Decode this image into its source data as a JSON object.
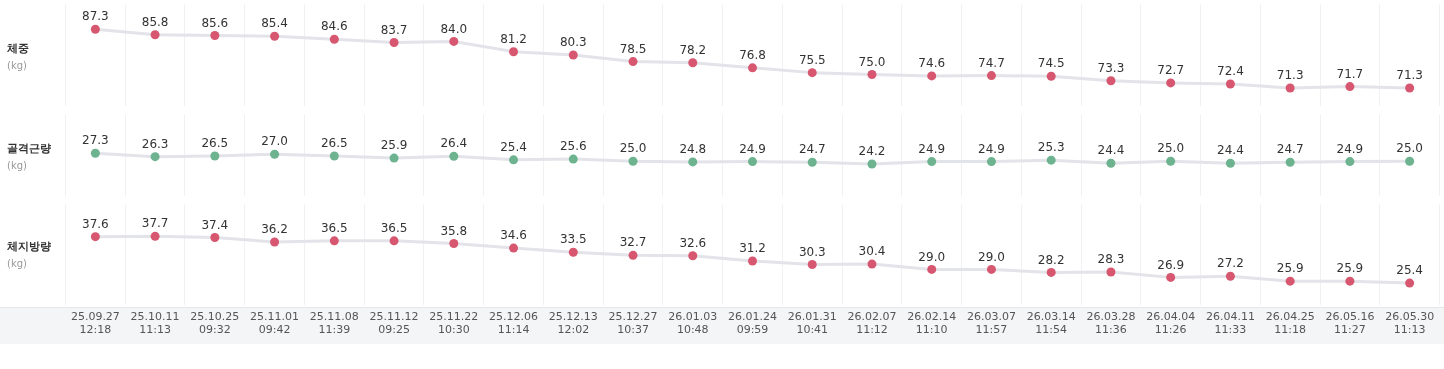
{
  "chart_data": [
    {
      "type": "line",
      "ylabel": "체중\n(kg)",
      "categories": [
        null,
        null,
        null,
        null,
        null,
        null,
        null,
        null,
        null,
        null,
        null,
        null,
        null,
        null,
        null,
        null,
        null,
        null,
        null,
        null,
        null,
        null,
        null
      ],
      "tick_labels": false,
      "grid": "x",
      "legend": false,
      "marker": "circle",
      "line_style": "solid",
      "series": [
        {
          "color": "#e3e3ea",
          "colors": [
            "#d6576f",
            "#d6576f",
            "#d6576f",
            "#d6576f",
            "#d6576f",
            "#d6576f",
            "#d6576f",
            "#d6576f",
            "#d6576f",
            "#d6576f",
            "#d6576f",
            "#d6576f",
            "#d6576f",
            "#d6576f",
            "#d6576f",
            "#d6576f",
            "#d6576f",
            "#d6576f",
            "#d6576f",
            "#d6576f",
            "#d6576f",
            "#d6576f",
            "#d6576f"
          ],
          "values": [
            87.3,
            85.8,
            85.6,
            85.4,
            84.6,
            83.7,
            84.0,
            81.2,
            80.3,
            78.5,
            78.2,
            76.8,
            75.5,
            75.0,
            74.6,
            74.7,
            74.5,
            73.3,
            72.7,
            72.4,
            71.3,
            71.7,
            71.3
          ],
          "value_labels": [
            "87.3",
            "85.8",
            "85.6",
            "85.4",
            "84.6",
            "83.7",
            "84.0",
            "81.2",
            "80.3",
            "78.5",
            "78.2",
            "76.8",
            "75.5",
            "75.0",
            "74.6",
            "74.7",
            "74.5",
            "73.3",
            "72.7",
            "72.4",
            "71.3",
            "71.7",
            "71.3"
          ]
        }
      ]
    },
    {
      "type": "line",
      "ylabel": "골격근량\n(kg)",
      "categories": [
        null,
        null,
        null,
        null,
        null,
        null,
        null,
        null,
        null,
        null,
        null,
        null,
        null,
        null,
        null,
        null,
        null,
        null,
        null,
        null,
        null,
        null,
        null
      ],
      "tick_labels": false,
      "grid": "x",
      "legend": false,
      "marker": "circle",
      "line_style": "solid",
      "series": [
        {
          "color": "#e3e3ea",
          "colors": [
            "#6db38f",
            "#6db38f",
            "#6db38f",
            "#6db38f",
            "#6db38f",
            "#6db38f",
            "#6db38f",
            "#6db38f",
            "#6db38f",
            "#6db38f",
            "#6db38f",
            "#6db38f",
            "#6db38f",
            "#6db38f",
            "#6db38f",
            "#6db38f",
            "#6db38f",
            "#6db38f",
            "#6db38f",
            "#6db38f",
            "#6db38f",
            "#6db38f",
            "#6db38f"
          ],
          "values": [
            27.3,
            26.3,
            26.5,
            27.0,
            26.5,
            25.9,
            26.4,
            25.4,
            25.6,
            25.0,
            24.8,
            24.9,
            24.7,
            24.2,
            24.9,
            24.9,
            25.3,
            24.4,
            25.0,
            24.4,
            24.7,
            24.9,
            25.0
          ],
          "value_labels": [
            "27.3",
            "26.3",
            "26.5",
            "27.0",
            "26.5",
            "25.9",
            "26.4",
            "25.4",
            "25.6",
            "25.0",
            "24.8",
            "24.9",
            "24.7",
            "24.2",
            "24.9",
            "24.9",
            "25.3",
            "24.4",
            "25.0",
            "24.4",
            "24.7",
            "24.9",
            "25.0"
          ]
        }
      ]
    },
    {
      "type": "line",
      "ylabel": "체지방량\n(kg)",
      "categories": [
        "25.09.27\n12:18",
        "25.10.11\n11:13",
        "25.10.25\n09:32",
        "25.11.01\n09:42",
        "25.11.08\n11:39",
        "25.11.12\n09:25",
        "25.11.22\n10:30",
        "25.12.06\n11:14",
        "25.12.13\n12:02",
        "25.12.27\n10:37",
        "26.01.03\n10:48",
        "26.01.24\n09:59",
        "26.01.31\n10:41",
        "26.02.07\n11:12",
        "26.02.14\n11:10",
        "26.03.07\n11:57",
        "26.03.14\n11:54",
        "26.03.28\n11:36",
        "26.04.04\n11:26",
        "26.04.11\n11:33",
        "26.04.25\n11:18",
        "26.05.16\n11:27",
        "26.05.30\n11:13"
      ],
      "tick_labels": "x",
      "grid": "x",
      "legend": false,
      "marker": "circle",
      "line_style": "solid",
      "series": [
        {
          "color": "#e3e3ea",
          "colors": [
            "#d6576f",
            "#d6576f",
            "#d6576f",
            "#d6576f",
            "#d6576f",
            "#d6576f",
            "#d6576f",
            "#d6576f",
            "#d6576f",
            "#d6576f",
            "#d6576f",
            "#d6576f",
            "#d6576f",
            "#d6576f",
            "#d6576f",
            "#d6576f",
            "#d6576f",
            "#d6576f",
            "#d6576f",
            "#d6576f",
            "#d6576f",
            "#d6576f",
            "#d6576f"
          ],
          "values": [
            37.6,
            37.7,
            37.4,
            36.2,
            36.5,
            36.5,
            35.8,
            34.6,
            33.5,
            32.7,
            32.6,
            31.2,
            30.3,
            30.4,
            29.0,
            29.0,
            28.2,
            28.3,
            26.9,
            27.2,
            25.9,
            25.9,
            25.4
          ],
          "value_labels": [
            "37.6",
            "37.7",
            "37.4",
            "36.2",
            "36.5",
            "36.5",
            "35.8",
            "34.6",
            "33.5",
            "32.7",
            "32.6",
            "31.2",
            "30.3",
            "30.4",
            "29.0",
            "29.0",
            "28.2",
            "28.3",
            "26.9",
            "27.2",
            "25.9",
            "25.9",
            "25.4"
          ]
        }
      ]
    }
  ]
}
